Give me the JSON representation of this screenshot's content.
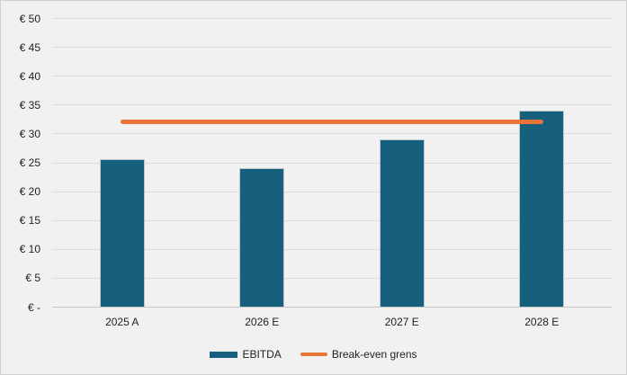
{
  "colors": {
    "background": "#F1F1F1",
    "border": "#D0D0D0",
    "gridline": "#DCDCDC",
    "axis_line": "#C7C7C7",
    "text": "#1F1F1F",
    "ebitda_bar": "#17607D",
    "breakeven_line": "#E97438"
  },
  "chart_data": {
    "type": "bar",
    "title": "",
    "categories": [
      "2025 A",
      "2026 E",
      "2027 E",
      "2028 E"
    ],
    "series": [
      {
        "name": "EBITDA",
        "type": "bar",
        "values": [
          25.5,
          24,
          29,
          34
        ],
        "color": "#17607D"
      },
      {
        "name": "Break-even grens",
        "type": "line",
        "values": [
          32,
          32,
          32,
          32
        ],
        "color": "#E97438"
      }
    ],
    "xlabel": "",
    "ylabel": "",
    "y_axis": {
      "min": 0,
      "max": 50,
      "step": 5,
      "tick_values": [
        0,
        5,
        10,
        15,
        20,
        25,
        30,
        35,
        40,
        45,
        50
      ],
      "tick_labels": [
        "€ -",
        "€ 5",
        "€ 10",
        "€ 15",
        "€ 20",
        "€ 25",
        "€ 30",
        "€ 35",
        "€ 40",
        "€ 45",
        "€ 50"
      ],
      "currency_prefix": "€"
    },
    "grid": true,
    "legend_position": "bottom"
  },
  "legend": {
    "items": [
      {
        "label": "EBITDA",
        "swatch": "rect"
      },
      {
        "label": "Break-even grens",
        "swatch": "line"
      }
    ]
  }
}
